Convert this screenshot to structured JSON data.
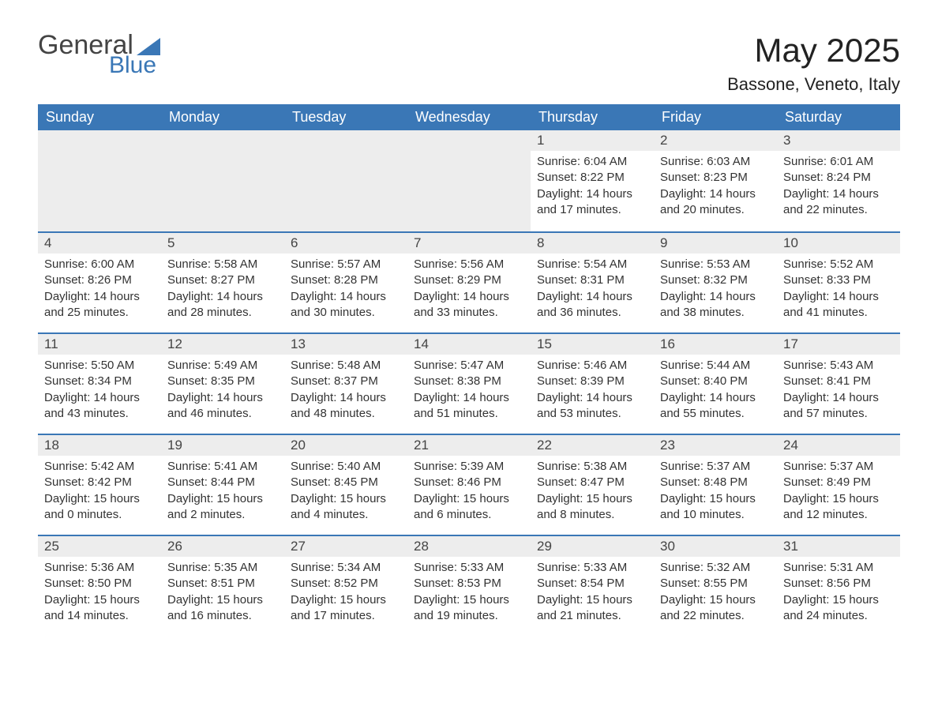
{
  "logo": {
    "text1": "General",
    "text2": "Blue"
  },
  "title": "May 2025",
  "location": "Bassone, Veneto, Italy",
  "colors": {
    "header_bg": "#3a77b6",
    "header_text": "#ffffff",
    "daynum_bg": "#ededed",
    "border_top": "#3a77b6",
    "body_text": "#333333",
    "page_bg": "#ffffff"
  },
  "weekdays": [
    "Sunday",
    "Monday",
    "Tuesday",
    "Wednesday",
    "Thursday",
    "Friday",
    "Saturday"
  ],
  "first_weekday_index": 4,
  "days": [
    {
      "n": 1,
      "sunrise": "6:04 AM",
      "sunset": "8:22 PM",
      "dl_h": 14,
      "dl_m": 17
    },
    {
      "n": 2,
      "sunrise": "6:03 AM",
      "sunset": "8:23 PM",
      "dl_h": 14,
      "dl_m": 20
    },
    {
      "n": 3,
      "sunrise": "6:01 AM",
      "sunset": "8:24 PM",
      "dl_h": 14,
      "dl_m": 22
    },
    {
      "n": 4,
      "sunrise": "6:00 AM",
      "sunset": "8:26 PM",
      "dl_h": 14,
      "dl_m": 25
    },
    {
      "n": 5,
      "sunrise": "5:58 AM",
      "sunset": "8:27 PM",
      "dl_h": 14,
      "dl_m": 28
    },
    {
      "n": 6,
      "sunrise": "5:57 AM",
      "sunset": "8:28 PM",
      "dl_h": 14,
      "dl_m": 30
    },
    {
      "n": 7,
      "sunrise": "5:56 AM",
      "sunset": "8:29 PM",
      "dl_h": 14,
      "dl_m": 33
    },
    {
      "n": 8,
      "sunrise": "5:54 AM",
      "sunset": "8:31 PM",
      "dl_h": 14,
      "dl_m": 36
    },
    {
      "n": 9,
      "sunrise": "5:53 AM",
      "sunset": "8:32 PM",
      "dl_h": 14,
      "dl_m": 38
    },
    {
      "n": 10,
      "sunrise": "5:52 AM",
      "sunset": "8:33 PM",
      "dl_h": 14,
      "dl_m": 41
    },
    {
      "n": 11,
      "sunrise": "5:50 AM",
      "sunset": "8:34 PM",
      "dl_h": 14,
      "dl_m": 43
    },
    {
      "n": 12,
      "sunrise": "5:49 AM",
      "sunset": "8:35 PM",
      "dl_h": 14,
      "dl_m": 46
    },
    {
      "n": 13,
      "sunrise": "5:48 AM",
      "sunset": "8:37 PM",
      "dl_h": 14,
      "dl_m": 48
    },
    {
      "n": 14,
      "sunrise": "5:47 AM",
      "sunset": "8:38 PM",
      "dl_h": 14,
      "dl_m": 51
    },
    {
      "n": 15,
      "sunrise": "5:46 AM",
      "sunset": "8:39 PM",
      "dl_h": 14,
      "dl_m": 53
    },
    {
      "n": 16,
      "sunrise": "5:44 AM",
      "sunset": "8:40 PM",
      "dl_h": 14,
      "dl_m": 55
    },
    {
      "n": 17,
      "sunrise": "5:43 AM",
      "sunset": "8:41 PM",
      "dl_h": 14,
      "dl_m": 57
    },
    {
      "n": 18,
      "sunrise": "5:42 AM",
      "sunset": "8:42 PM",
      "dl_h": 15,
      "dl_m": 0
    },
    {
      "n": 19,
      "sunrise": "5:41 AM",
      "sunset": "8:44 PM",
      "dl_h": 15,
      "dl_m": 2
    },
    {
      "n": 20,
      "sunrise": "5:40 AM",
      "sunset": "8:45 PM",
      "dl_h": 15,
      "dl_m": 4
    },
    {
      "n": 21,
      "sunrise": "5:39 AM",
      "sunset": "8:46 PM",
      "dl_h": 15,
      "dl_m": 6
    },
    {
      "n": 22,
      "sunrise": "5:38 AM",
      "sunset": "8:47 PM",
      "dl_h": 15,
      "dl_m": 8
    },
    {
      "n": 23,
      "sunrise": "5:37 AM",
      "sunset": "8:48 PM",
      "dl_h": 15,
      "dl_m": 10
    },
    {
      "n": 24,
      "sunrise": "5:37 AM",
      "sunset": "8:49 PM",
      "dl_h": 15,
      "dl_m": 12
    },
    {
      "n": 25,
      "sunrise": "5:36 AM",
      "sunset": "8:50 PM",
      "dl_h": 15,
      "dl_m": 14
    },
    {
      "n": 26,
      "sunrise": "5:35 AM",
      "sunset": "8:51 PM",
      "dl_h": 15,
      "dl_m": 16
    },
    {
      "n": 27,
      "sunrise": "5:34 AM",
      "sunset": "8:52 PM",
      "dl_h": 15,
      "dl_m": 17
    },
    {
      "n": 28,
      "sunrise": "5:33 AM",
      "sunset": "8:53 PM",
      "dl_h": 15,
      "dl_m": 19
    },
    {
      "n": 29,
      "sunrise": "5:33 AM",
      "sunset": "8:54 PM",
      "dl_h": 15,
      "dl_m": 21
    },
    {
      "n": 30,
      "sunrise": "5:32 AM",
      "sunset": "8:55 PM",
      "dl_h": 15,
      "dl_m": 22
    },
    {
      "n": 31,
      "sunrise": "5:31 AM",
      "sunset": "8:56 PM",
      "dl_h": 15,
      "dl_m": 24
    }
  ],
  "labels": {
    "sunrise": "Sunrise:",
    "sunset": "Sunset:",
    "daylight": "Daylight:",
    "hours": "hours",
    "and": "and",
    "minutes": "minutes."
  }
}
